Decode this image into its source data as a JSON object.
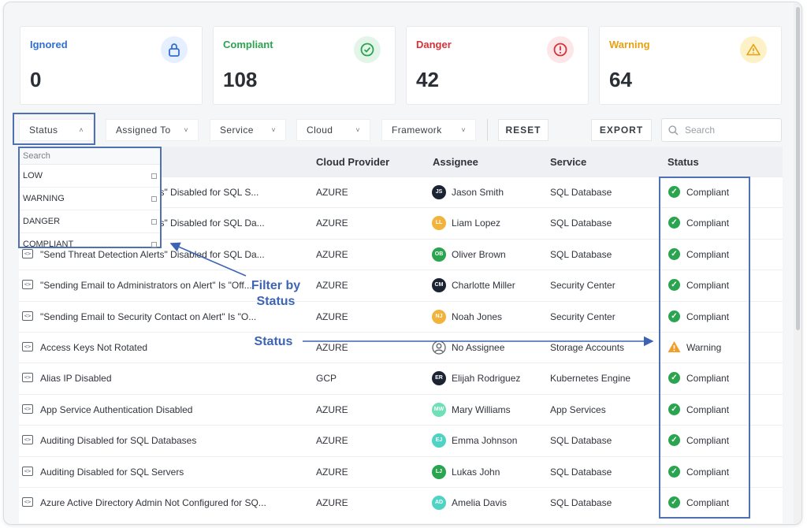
{
  "cards": [
    {
      "label": "Ignored",
      "value": "0",
      "color": "#2f6fd6",
      "icon": "lock-icon"
    },
    {
      "label": "Compliant",
      "value": "108",
      "color": "#2aa44f",
      "icon": "check-circle-icon"
    },
    {
      "label": "Danger",
      "value": "42",
      "color": "#d6323a",
      "icon": "alert-circle-icon"
    },
    {
      "label": "Warning",
      "value": "64",
      "color": "#e8a00f",
      "icon": "warning-triangle-icon"
    }
  ],
  "filters": {
    "status": "Status",
    "assigned_to": "Assigned To",
    "service": "Service",
    "cloud": "Cloud",
    "framework": "Framework"
  },
  "buttons": {
    "reset": "RESET",
    "export": "EXPORT"
  },
  "search": {
    "placeholder": "Search"
  },
  "table": {
    "headers": {
      "cloud_provider": "Cloud Provider",
      "assignee": "Assignee",
      "service": "Service",
      "status": "Status"
    },
    "rows": [
      {
        "rule": "\"Send Threat Detection Alerts\" Disabled for SQL S...",
        "provider": "AZURE",
        "initials": "JS",
        "avatar_color": "#1c2433",
        "assignee": "Jason Smith",
        "service": "SQL Database",
        "status": "Compliant"
      },
      {
        "rule": "\"Send Threat Detection Alerts\" Disabled for SQL Da...",
        "provider": "AZURE",
        "initials": "LL",
        "avatar_color": "#f2b33d",
        "assignee": "Liam Lopez",
        "service": "SQL Database",
        "status": "Compliant"
      },
      {
        "rule": "\"Send Threat Detection Alerts\" Disabled for SQL Da...",
        "provider": "AZURE",
        "initials": "OB",
        "avatar_color": "#2aa44f",
        "assignee": "Oliver Brown",
        "service": "SQL Database",
        "status": "Compliant"
      },
      {
        "rule": "\"Sending Email to Administrators on Alert\" Is \"Off...",
        "provider": "AZURE",
        "initials": "CM",
        "avatar_color": "#1c2433",
        "assignee": "Charlotte Miller",
        "service": "Security Center",
        "status": "Compliant"
      },
      {
        "rule": "\"Sending Email to Security Contact on Alert\" Is \"O...",
        "provider": "AZURE",
        "initials": "NJ",
        "avatar_color": "#f2b33d",
        "assignee": "Noah Jones",
        "service": "Security Center",
        "status": "Compliant"
      },
      {
        "rule": "Access Keys Not Rotated",
        "provider": "AZURE",
        "initials": "",
        "avatar_color": "#ffffff",
        "assignee": "No Assignee",
        "service": "Storage Accounts",
        "status": "Warning"
      },
      {
        "rule": "Alias IP Disabled",
        "provider": "GCP",
        "initials": "ER",
        "avatar_color": "#1c2433",
        "assignee": "Elijah Rodriguez",
        "service": "Kubernetes Engine",
        "status": "Compliant"
      },
      {
        "rule": "App Service Authentication Disabled",
        "provider": "AZURE",
        "initials": "MW",
        "avatar_color": "#6fe0b8",
        "assignee": "Mary Williams",
        "service": "App Services",
        "status": "Compliant"
      },
      {
        "rule": "Auditing Disabled for SQL Databases",
        "provider": "AZURE",
        "initials": "EJ",
        "avatar_color": "#4fd3c4",
        "assignee": "Emma Johnson",
        "service": "SQL Database",
        "status": "Compliant"
      },
      {
        "rule": "Auditing Disabled for SQL Servers",
        "provider": "AZURE",
        "initials": "LJ",
        "avatar_color": "#2aa44f",
        "assignee": "Lukas John",
        "service": "SQL Database",
        "status": "Compliant"
      },
      {
        "rule": "Azure Active Directory Admin Not Configured for SQ...",
        "provider": "AZURE",
        "initials": "AD",
        "avatar_color": "#4fd3c4",
        "assignee": "Amelia Davis",
        "service": "SQL Database",
        "status": "Compliant"
      }
    ]
  },
  "dropdown": {
    "search_placeholder": "Search",
    "options": [
      "LOW",
      "WARNING",
      "DANGER",
      "COMPLIANT"
    ]
  },
  "annotations": {
    "filter_by": "Filter by",
    "filter_status": "Status",
    "status": "Status",
    "color": "#3d64b4"
  }
}
